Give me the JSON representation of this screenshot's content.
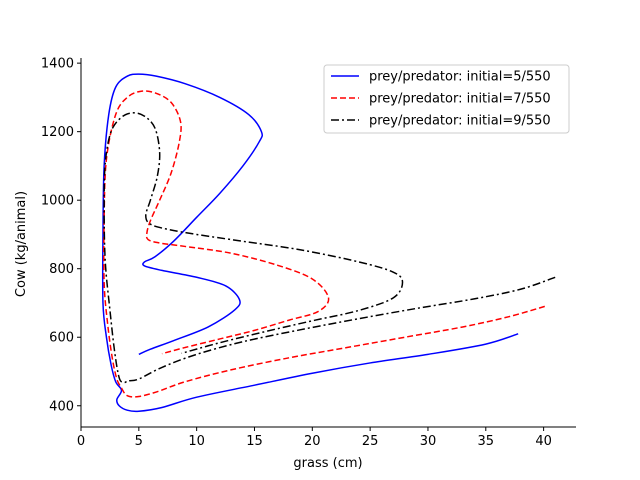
{
  "chart_data": {
    "type": "line",
    "title": "",
    "xlabel": "grass (cm)",
    "ylabel": "Cow (kg/animal)",
    "xlim": [
      0,
      42.8
    ],
    "ylim": [
      338,
      1415
    ],
    "xticks": [
      0,
      5,
      10,
      15,
      20,
      25,
      30,
      35,
      40
    ],
    "yticks": [
      400,
      600,
      800,
      1000,
      1200,
      1400
    ],
    "grid": false,
    "legend_position": "top-right",
    "series": [
      {
        "name": "prey/predator: initial=5/550",
        "color": "#0000ff",
        "dash": "solid",
        "x": [
          37.8,
          35,
          30,
          25,
          20,
          15,
          10,
          7,
          5,
          4,
          3.3,
          3.1,
          3.5,
          3.0,
          2.6,
          2.2,
          1.9,
          1.9,
          2.0,
          2.4,
          3,
          4,
          5,
          6.5,
          9,
          12,
          14.5,
          15.6,
          15.4,
          14,
          12,
          10,
          8,
          6.4,
          5.5,
          5.5,
          7,
          10,
          12.5,
          13.7,
          13.3,
          11,
          8,
          6,
          5
        ],
        "y": [
          610,
          580,
          550,
          525,
          495,
          460,
          425,
          395,
          384,
          387,
          400,
          418,
          445,
          470,
          520,
          600,
          700,
          900,
          1100,
          1250,
          1330,
          1362,
          1368,
          1362,
          1340,
          1300,
          1250,
          1200,
          1170,
          1100,
          1020,
          950,
          880,
          835,
          820,
          808,
          795,
          775,
          750,
          710,
          680,
          630,
          590,
          565,
          550
        ]
      },
      {
        "name": "prey/predator: initial=7/550",
        "color": "#ff0000",
        "dash": "dashed",
        "x": [
          40.1,
          37,
          33,
          28,
          23,
          18,
          13,
          9,
          6.5,
          5,
          4.2,
          3.8,
          3.5,
          3.1,
          2.7,
          2.3,
          2.0,
          2.0,
          2.2,
          3,
          4,
          5.2,
          6.5,
          7.8,
          8.6,
          8.5,
          7.8,
          6.8,
          6.0,
          5.7,
          5.8,
          6.8,
          9,
          13,
          17,
          20,
          21.4,
          20.5,
          18,
          15,
          12,
          9,
          7
        ],
        "y": [
          690,
          660,
          630,
          600,
          570,
          540,
          505,
          470,
          440,
          427,
          427,
          435,
          452,
          478,
          540,
          640,
          760,
          950,
          1120,
          1250,
          1300,
          1318,
          1312,
          1285,
          1230,
          1170,
          1080,
          1000,
          940,
          905,
          885,
          875,
          865,
          845,
          810,
          770,
          715,
          675,
          650,
          620,
          595,
          570,
          552
        ]
      },
      {
        "name": "prey/predator: initial=9/550",
        "color": "#000000",
        "dash": "dashdot",
        "x": [
          41.0,
          38,
          34,
          29,
          24,
          19,
          14,
          10,
          7,
          5,
          4.2,
          4.0,
          3.7,
          3.3,
          2.9,
          2.5,
          2.1,
          2.0,
          2.1,
          2.6,
          3.5,
          4.5,
          5.5,
          6.4,
          6.8,
          6.6,
          6.0,
          5.6,
          6.0,
          7.5,
          10,
          14,
          19,
          24,
          27,
          27.8,
          27,
          24,
          20,
          16,
          12,
          8.7
        ],
        "y": [
          775,
          740,
          712,
          684,
          654,
          622,
          587,
          550,
          512,
          478,
          473,
          472,
          468,
          482,
          560,
          680,
          820,
          980,
          1110,
          1200,
          1242,
          1255,
          1245,
          1210,
          1140,
          1070,
          1000,
          955,
          930,
          915,
          900,
          880,
          855,
          820,
          790,
          760,
          715,
          678,
          648,
          617,
          584,
          553
        ]
      }
    ]
  }
}
